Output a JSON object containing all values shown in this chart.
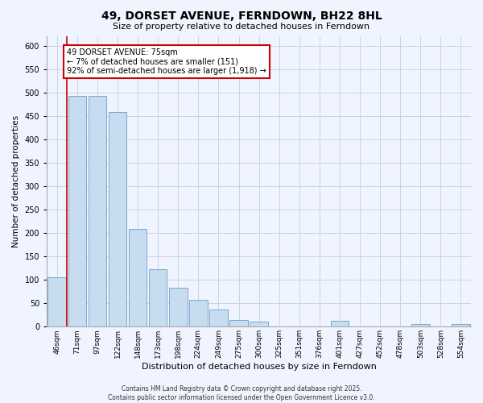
{
  "title": "49, DORSET AVENUE, FERNDOWN, BH22 8HL",
  "subtitle": "Size of property relative to detached houses in Ferndown",
  "xlabel": "Distribution of detached houses by size in Ferndown",
  "ylabel": "Number of detached properties",
  "bar_labels": [
    "46sqm",
    "71sqm",
    "97sqm",
    "122sqm",
    "148sqm",
    "173sqm",
    "198sqm",
    "224sqm",
    "249sqm",
    "275sqm",
    "300sqm",
    "325sqm",
    "351sqm",
    "376sqm",
    "401sqm",
    "427sqm",
    "452sqm",
    "478sqm",
    "503sqm",
    "528sqm",
    "554sqm"
  ],
  "bar_values": [
    105,
    493,
    493,
    458,
    208,
    123,
    83,
    58,
    36,
    15,
    10,
    0,
    0,
    0,
    12,
    0,
    0,
    0,
    5,
    0,
    5
  ],
  "bar_color": "#c8dcf0",
  "bar_edge_color": "#7ba8d0",
  "vline_x": 0.5,
  "vline_color": "#cc0000",
  "annotation_title": "49 DORSET AVENUE: 75sqm",
  "annotation_line1": "← 7% of detached houses are smaller (151)",
  "annotation_line2": "92% of semi-detached houses are larger (1,918) →",
  "annotation_box_color": "#ffffff",
  "annotation_box_edge": "#cc0000",
  "ylim": [
    0,
    620
  ],
  "yticks": [
    0,
    50,
    100,
    150,
    200,
    250,
    300,
    350,
    400,
    450,
    500,
    550,
    600
  ],
  "footer_line1": "Contains HM Land Registry data © Crown copyright and database right 2025.",
  "footer_line2": "Contains public sector information licensed under the Open Government Licence v3.0.",
  "bg_color": "#f0f4ff",
  "grid_color": "#c8d4e8"
}
